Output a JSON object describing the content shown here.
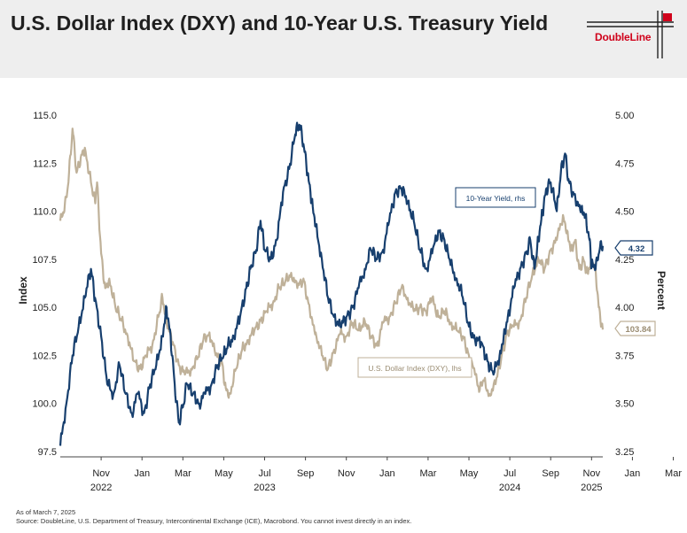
{
  "header": {
    "title": "U.S. Dollar Index (DXY) and 10-Year U.S. Treasury Yield",
    "logo_text": "DoubleLine"
  },
  "colors": {
    "yield": "#173f6e",
    "dxy": "#bfb199",
    "brand_red": "#d0021b",
    "header_bg": "#eeeeee"
  },
  "chart_data": {
    "type": "line",
    "title": "U.S. Dollar Index (DXY) and 10-Year U.S. Treasury Yield",
    "x_range": [
      "2022-09-01",
      "2025-03-07"
    ],
    "x_ticks": [
      "Nov",
      "Jan",
      "Mar",
      "May",
      "Jul",
      "Sep",
      "Nov",
      "Jan",
      "Mar",
      "May",
      "Jul",
      "Sep",
      "Nov",
      "Jan",
      "Mar"
    ],
    "x_year_labels": [
      "2022",
      "2023",
      "2024",
      "2025"
    ],
    "left_axis": {
      "label": "Index",
      "lim": [
        97.5,
        115.0
      ],
      "ticks": [
        "97.5",
        "100.0",
        "102.5",
        "105.0",
        "107.5",
        "110.0",
        "112.5",
        "115.0"
      ]
    },
    "right_axis": {
      "label": "Percent",
      "lim": [
        3.25,
        5.0
      ],
      "ticks": [
        "3.25",
        "3.50",
        "3.75",
        "4.00",
        "4.25",
        "4.50",
        "4.75",
        "5.00"
      ]
    },
    "series": [
      {
        "name": "10-Year Yield, rhs",
        "axis": "right",
        "last_value_label": "4.32",
        "points": [
          [
            0.0,
            3.28
          ],
          [
            0.3,
            3.5
          ],
          [
            0.6,
            3.75
          ],
          [
            0.9,
            3.9
          ],
          [
            1.2,
            4.05
          ],
          [
            1.5,
            4.2
          ],
          [
            1.7,
            4.05
          ],
          [
            2.0,
            3.85
          ],
          [
            2.3,
            3.6
          ],
          [
            2.6,
            3.55
          ],
          [
            2.9,
            3.7
          ],
          [
            3.2,
            3.55
          ],
          [
            3.5,
            3.45
          ],
          [
            3.8,
            3.55
          ],
          [
            4.1,
            3.45
          ],
          [
            4.4,
            3.6
          ],
          [
            4.7,
            3.7
          ],
          [
            5.0,
            3.85
          ],
          [
            5.2,
            4.0
          ],
          [
            5.4,
            3.85
          ],
          [
            5.6,
            3.6
          ],
          [
            5.8,
            3.4
          ],
          [
            6.0,
            3.48
          ],
          [
            6.2,
            3.6
          ],
          [
            6.5,
            3.55
          ],
          [
            6.8,
            3.5
          ],
          [
            7.1,
            3.55
          ],
          [
            7.4,
            3.6
          ],
          [
            7.7,
            3.7
          ],
          [
            8.0,
            3.75
          ],
          [
            8.2,
            3.8
          ],
          [
            8.5,
            3.85
          ],
          [
            8.8,
            3.95
          ],
          [
            9.1,
            4.1
          ],
          [
            9.3,
            4.2
          ],
          [
            9.6,
            4.3
          ],
          [
            9.8,
            4.45
          ],
          [
            10.0,
            4.3
          ],
          [
            10.3,
            4.25
          ],
          [
            10.6,
            4.35
          ],
          [
            10.9,
            4.6
          ],
          [
            11.2,
            4.72
          ],
          [
            11.5,
            4.9
          ],
          [
            11.7,
            4.95
          ],
          [
            11.9,
            4.85
          ],
          [
            12.1,
            4.7
          ],
          [
            12.3,
            4.55
          ],
          [
            12.5,
            4.42
          ],
          [
            12.8,
            4.25
          ],
          [
            13.1,
            4.05
          ],
          [
            13.4,
            3.95
          ],
          [
            13.7,
            3.9
          ],
          [
            14.0,
            3.95
          ],
          [
            14.3,
            4.0
          ],
          [
            14.6,
            4.1
          ],
          [
            14.9,
            4.2
          ],
          [
            15.2,
            4.3
          ],
          [
            15.5,
            4.25
          ],
          [
            15.8,
            4.3
          ],
          [
            16.1,
            4.45
          ],
          [
            16.4,
            4.6
          ],
          [
            16.7,
            4.62
          ],
          [
            17.0,
            4.55
          ],
          [
            17.3,
            4.45
          ],
          [
            17.6,
            4.3
          ],
          [
            17.9,
            4.2
          ],
          [
            18.2,
            4.28
          ],
          [
            18.5,
            4.4
          ],
          [
            18.8,
            4.35
          ],
          [
            19.1,
            4.22
          ],
          [
            19.4,
            4.15
          ],
          [
            19.7,
            4.05
          ],
          [
            20.0,
            3.9
          ],
          [
            20.3,
            3.83
          ],
          [
            20.6,
            3.82
          ],
          [
            20.9,
            3.72
          ],
          [
            21.2,
            3.65
          ],
          [
            21.5,
            3.75
          ],
          [
            21.7,
            3.85
          ],
          [
            21.9,
            3.95
          ],
          [
            22.2,
            4.1
          ],
          [
            22.5,
            4.2
          ],
          [
            22.8,
            4.28
          ],
          [
            23.0,
            4.35
          ],
          [
            23.2,
            4.2
          ],
          [
            23.4,
            4.35
          ],
          [
            23.6,
            4.5
          ],
          [
            23.8,
            4.62
          ],
          [
            24.0,
            4.65
          ],
          [
            24.3,
            4.5
          ],
          [
            24.5,
            4.7
          ],
          [
            24.7,
            4.8
          ],
          [
            24.9,
            4.65
          ],
          [
            25.1,
            4.6
          ],
          [
            25.3,
            4.55
          ],
          [
            25.5,
            4.52
          ],
          [
            25.7,
            4.48
          ],
          [
            25.9,
            4.35
          ],
          [
            26.0,
            4.22
          ],
          [
            26.2,
            4.2
          ],
          [
            26.4,
            4.3
          ],
          [
            26.55,
            4.32
          ]
        ]
      },
      {
        "name": "U.S. Dollar Index (DXY), lhs",
        "axis": "left",
        "last_value_label": "103.84",
        "points": [
          [
            0.0,
            109.5
          ],
          [
            0.2,
            110.0
          ],
          [
            0.4,
            111.5
          ],
          [
            0.6,
            114.3
          ],
          [
            0.8,
            112.0
          ],
          [
            1.0,
            112.8
          ],
          [
            1.2,
            113.3
          ],
          [
            1.5,
            111.5
          ],
          [
            1.7,
            110.5
          ],
          [
            1.8,
            111.5
          ],
          [
            2.0,
            107.8
          ],
          [
            2.2,
            106.0
          ],
          [
            2.4,
            106.5
          ],
          [
            2.7,
            105.0
          ],
          [
            3.0,
            104.3
          ],
          [
            3.3,
            103.5
          ],
          [
            3.6,
            102.2
          ],
          [
            3.9,
            101.8
          ],
          [
            4.2,
            102.5
          ],
          [
            4.5,
            103.0
          ],
          [
            4.8,
            104.5
          ],
          [
            5.0,
            105.5
          ],
          [
            5.2,
            104.2
          ],
          [
            5.5,
            103.2
          ],
          [
            5.8,
            102.0
          ],
          [
            6.1,
            101.5
          ],
          [
            6.4,
            101.8
          ],
          [
            6.7,
            102.3
          ],
          [
            7.0,
            103.3
          ],
          [
            7.3,
            103.7
          ],
          [
            7.6,
            102.5
          ],
          [
            7.9,
            102.2
          ],
          [
            8.1,
            100.8
          ],
          [
            8.3,
            100.5
          ],
          [
            8.6,
            101.8
          ],
          [
            8.9,
            102.8
          ],
          [
            9.2,
            103.3
          ],
          [
            9.5,
            103.8
          ],
          [
            9.8,
            104.3
          ],
          [
            10.1,
            104.8
          ],
          [
            10.4,
            105.2
          ],
          [
            10.7,
            106.0
          ],
          [
            11.0,
            106.3
          ],
          [
            11.3,
            106.8
          ],
          [
            11.6,
            106.0
          ],
          [
            11.9,
            106.5
          ],
          [
            12.1,
            105.5
          ],
          [
            12.3,
            104.5
          ],
          [
            12.5,
            103.7
          ],
          [
            12.8,
            102.5
          ],
          [
            13.1,
            101.8
          ],
          [
            13.4,
            102.8
          ],
          [
            13.7,
            103.6
          ],
          [
            14.0,
            103.5
          ],
          [
            14.3,
            104.2
          ],
          [
            14.6,
            103.8
          ],
          [
            14.9,
            104.3
          ],
          [
            15.2,
            103.5
          ],
          [
            15.5,
            103.0
          ],
          [
            15.8,
            104.2
          ],
          [
            16.1,
            104.5
          ],
          [
            16.4,
            105.2
          ],
          [
            16.7,
            106.0
          ],
          [
            17.0,
            105.5
          ],
          [
            17.3,
            104.8
          ],
          [
            17.6,
            105.0
          ],
          [
            17.9,
            104.8
          ],
          [
            18.2,
            105.5
          ],
          [
            18.5,
            104.5
          ],
          [
            18.8,
            104.8
          ],
          [
            19.1,
            104.2
          ],
          [
            19.4,
            103.8
          ],
          [
            19.7,
            103.5
          ],
          [
            20.0,
            102.5
          ],
          [
            20.3,
            101.5
          ],
          [
            20.5,
            100.6
          ],
          [
            20.7,
            101.2
          ],
          [
            21.0,
            100.5
          ],
          [
            21.3,
            101.0
          ],
          [
            21.6,
            102.5
          ],
          [
            21.9,
            103.8
          ],
          [
            22.2,
            104.0
          ],
          [
            22.5,
            104.3
          ],
          [
            22.8,
            105.5
          ],
          [
            23.1,
            106.7
          ],
          [
            23.4,
            107.5
          ],
          [
            23.7,
            107.0
          ],
          [
            24.0,
            108.0
          ],
          [
            24.3,
            108.5
          ],
          [
            24.6,
            109.8
          ],
          [
            24.8,
            109.0
          ],
          [
            25.0,
            108.0
          ],
          [
            25.2,
            108.5
          ],
          [
            25.4,
            107.0
          ],
          [
            25.6,
            107.5
          ],
          [
            25.8,
            106.8
          ],
          [
            26.0,
            107.5
          ],
          [
            26.2,
            107.0
          ],
          [
            26.35,
            105.0
          ],
          [
            26.55,
            103.84
          ]
        ]
      }
    ]
  },
  "footer": {
    "asof": "As of March 7, 2025",
    "source": "Source: DoubleLine, U.S. Department of Treasury, Intercontinental Exchange (ICE), Macrobond. You cannot invest directly in an index."
  }
}
